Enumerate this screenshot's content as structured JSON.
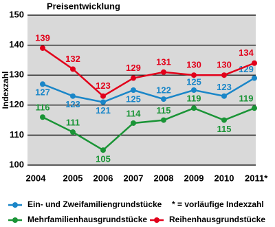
{
  "chart_data": {
    "type": "line",
    "title": "Preisentwicklung",
    "y_label": "Indexzahl",
    "categories": [
      "2004",
      "2005",
      "2006",
      "2007",
      "2008",
      "2009",
      "2010",
      "2011*"
    ],
    "series": [
      {
        "name": "Ein- und Zweifamiliengrundstücke",
        "color": "#1a86c8",
        "values": [
          127,
          123,
          121,
          125,
          122,
          125,
          123,
          129
        ]
      },
      {
        "name": "Mehrfamilienhausgrundstücke",
        "color": "#1a9436",
        "values": [
          116,
          111,
          105,
          114,
          115,
          119,
          115,
          119
        ]
      },
      {
        "name": "Reihenhausgrundstücke",
        "color": "#e2001a",
        "values": [
          139,
          132,
          123,
          129,
          131,
          130,
          130,
          134
        ]
      }
    ],
    "note": "* = vorläufige Indexzahl",
    "ylim": [
      100,
      150
    ],
    "yticks": [
      100,
      110,
      120,
      130,
      140,
      150
    ],
    "grid": true
  }
}
